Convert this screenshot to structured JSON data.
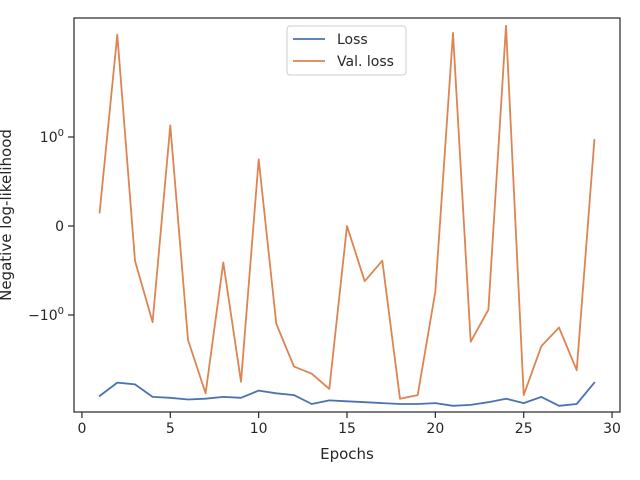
{
  "chart_data": {
    "type": "line",
    "xlabel": "Epochs",
    "ylabel": "Negative log-likelihood",
    "xlim": [
      -0.45,
      30.45
    ],
    "x_ticks": [
      0,
      5,
      10,
      15,
      20,
      25,
      30
    ],
    "y_scale": "symlog",
    "y_ticks": [
      {
        "value": 1,
        "label": "10",
        "exp": "0"
      },
      {
        "value": 0,
        "label": "0",
        "exp": ""
      },
      {
        "value": -1,
        "label": "−10",
        "exp": "0"
      }
    ],
    "grid": false,
    "legend": {
      "position": "top-center"
    },
    "x": [
      1,
      2,
      3,
      4,
      5,
      6,
      7,
      8,
      9,
      10,
      11,
      12,
      13,
      14,
      15,
      16,
      17,
      18,
      19,
      20,
      21,
      22,
      23,
      24,
      25,
      26,
      27,
      28,
      29
    ],
    "series": [
      {
        "name": "Loss",
        "color": "#4c72b0",
        "values": [
          -1.91,
          -1.76,
          -1.78,
          -1.92,
          -1.93,
          -1.95,
          -1.94,
          -1.92,
          -1.93,
          -1.85,
          -1.88,
          -1.9,
          -2.0,
          -1.96,
          -1.97,
          -1.98,
          -1.99,
          -2.0,
          -2.0,
          -1.99,
          -2.02,
          -2.01,
          -1.98,
          -1.94,
          -1.99,
          -1.92,
          -2.02,
          -2.0,
          -1.76
        ]
      },
      {
        "name": "Val. loss",
        "color": "#dd8452",
        "values": [
          0.15,
          2.15,
          -0.39,
          -1.08,
          1.13,
          -1.28,
          -1.88,
          -0.41,
          -1.75,
          0.75,
          -1.1,
          -1.58,
          -1.66,
          -1.83,
          0.0,
          -0.62,
          -0.39,
          -1.94,
          -1.9,
          -0.74,
          2.17,
          -1.3,
          -0.94,
          2.25,
          -1.9,
          -1.35,
          -1.14,
          -1.62,
          0.97
        ]
      }
    ]
  }
}
